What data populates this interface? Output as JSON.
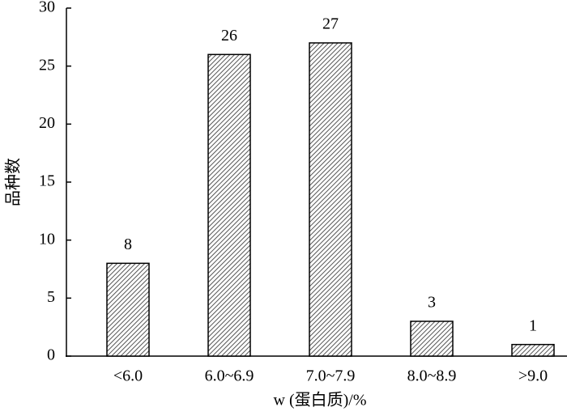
{
  "chart_data": {
    "type": "bar",
    "y_label": "品种数",
    "x_label": "w (蛋白质)/%",
    "categories": [
      "<6.0",
      "6.0~6.9",
      "7.0~7.9",
      "8.0~8.9",
      ">9.0"
    ],
    "values": [
      8,
      26,
      27,
      3,
      1
    ],
    "color": "#555555",
    "ylim": [
      0,
      30
    ],
    "yticks": [
      0,
      5,
      10,
      15,
      20,
      25,
      30
    ],
    "data_labels": true
  }
}
